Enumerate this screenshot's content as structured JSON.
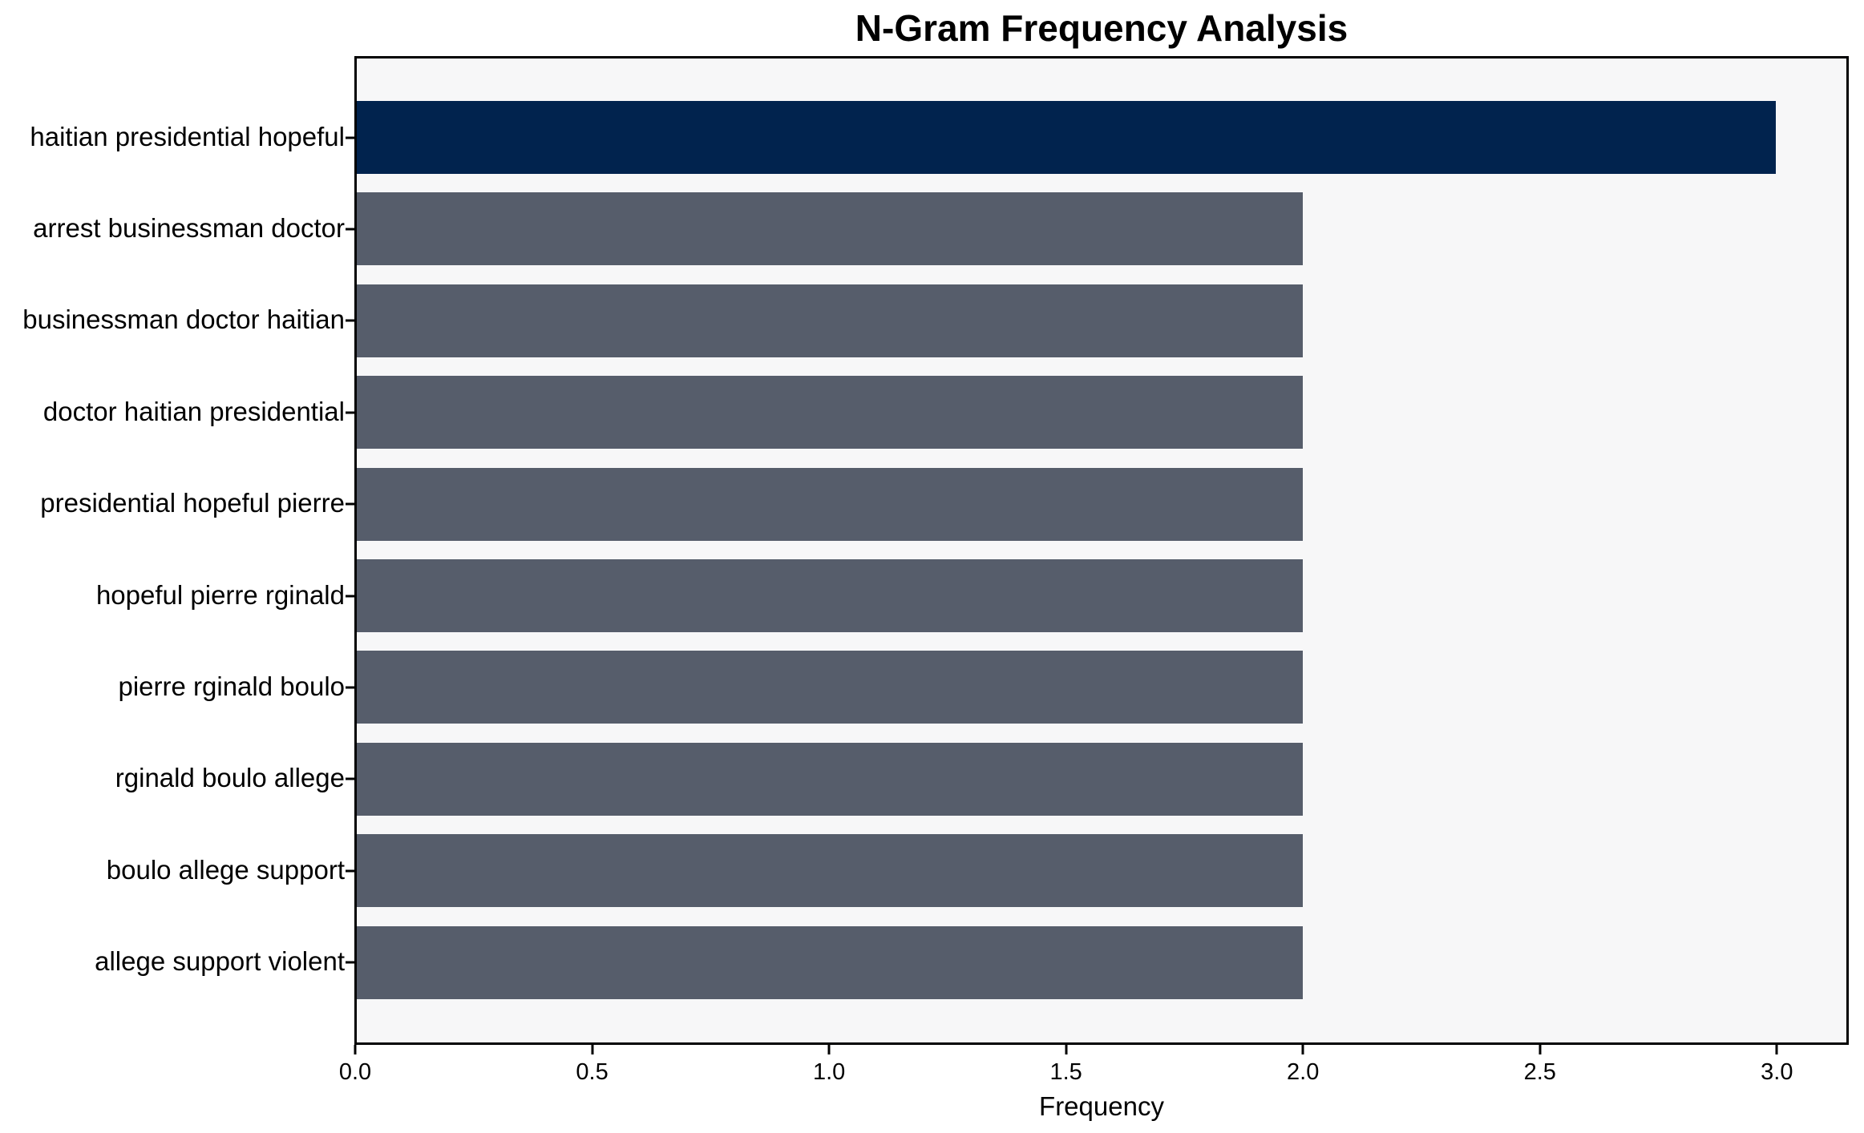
{
  "chart_data": {
    "type": "bar",
    "orientation": "horizontal",
    "title": "N-Gram Frequency Analysis",
    "xlabel": "Frequency",
    "ylabel": "",
    "categories": [
      "haitian presidential hopeful",
      "arrest businessman doctor",
      "businessman doctor haitian",
      "doctor haitian presidential",
      "presidential hopeful pierre",
      "hopeful pierre rginald",
      "pierre rginald boulo",
      "rginald boulo allege",
      "boulo allege support",
      "allege support violent"
    ],
    "values": [
      3,
      2,
      2,
      2,
      2,
      2,
      2,
      2,
      2,
      2
    ],
    "xlim": [
      0,
      3.15
    ],
    "xticks": [
      0.0,
      0.5,
      1.0,
      1.5,
      2.0,
      2.5,
      3.0
    ],
    "xtick_labels": [
      "0.0",
      "0.5",
      "1.0",
      "1.5",
      "2.0",
      "2.5",
      "3.0"
    ],
    "grid": false,
    "legend_position": "none",
    "colors": {
      "highlight_bar": "#01234e",
      "bar": "#565d6b",
      "plot_background": "#f7f7f8",
      "figure_background": "#ffffff",
      "axis": "#000000",
      "text": "#000000"
    }
  }
}
